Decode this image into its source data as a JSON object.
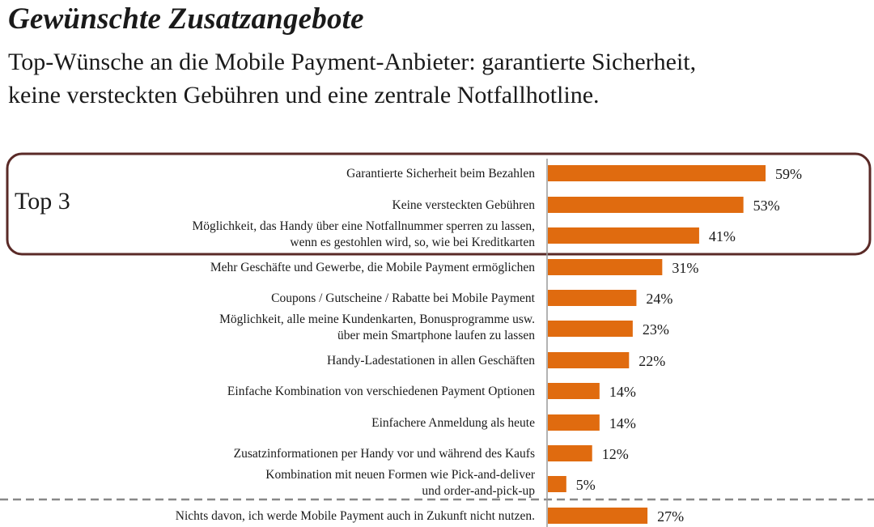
{
  "header": {
    "title": "Gewünschte Zusatzangebote",
    "subtitle_line1": "Top-Wünsche an die Mobile Payment-Anbieter: garantierte Sicherheit,",
    "subtitle_line2": "keine versteckten Gebühren und eine zentrale Notfallhotline."
  },
  "chart_data": {
    "type": "bar",
    "orientation": "horizontal",
    "unit": "%",
    "xlim": [
      0,
      59
    ],
    "group_label": "Top 3",
    "top_group_count": 3,
    "categories": [
      [
        "Garantierte Sicherheit beim Bezahlen"
      ],
      [
        "Keine versteckten Gebühren"
      ],
      [
        "Möglichkeit, das Handy über eine Notfallnummer sperren zu lassen,",
        "wenn es gestohlen wird, so, wie bei Kreditkarten"
      ],
      [
        "Mehr Geschäfte und Gewerbe, die Mobile Payment ermöglichen"
      ],
      [
        "Coupons / Gutscheine / Rabatte bei Mobile Payment"
      ],
      [
        "Möglichkeit, alle meine Kundenkarten, Bonusprogramme usw.",
        "über mein Smartphone laufen zu lassen"
      ],
      [
        "Handy-Ladestationen in allen Geschäften"
      ],
      [
        "Einfache Kombination von verschiedenen Payment Optionen"
      ],
      [
        "Einfachere Anmeldung als heute"
      ],
      [
        "Zusatzinformationen per Handy vor und während des Kaufs"
      ],
      [
        "Kombination mit neuen Formen wie Pick-and-deliver",
        "und order-and-pick-up"
      ],
      [
        "Nichts davon, ich werde Mobile Payment auch in Zukunft nicht nutzen."
      ]
    ],
    "values": [
      59,
      53,
      41,
      31,
      24,
      23,
      22,
      14,
      14,
      12,
      5,
      27
    ],
    "value_labels": [
      "59%",
      "53%",
      "41%",
      "31%",
      "24%",
      "23%",
      "22%",
      "14%",
      "14%",
      "12%",
      "5%",
      "27%"
    ],
    "separated_last_item": true,
    "bar_color": "#e06b0f",
    "frame_color": "#5a2a27"
  }
}
